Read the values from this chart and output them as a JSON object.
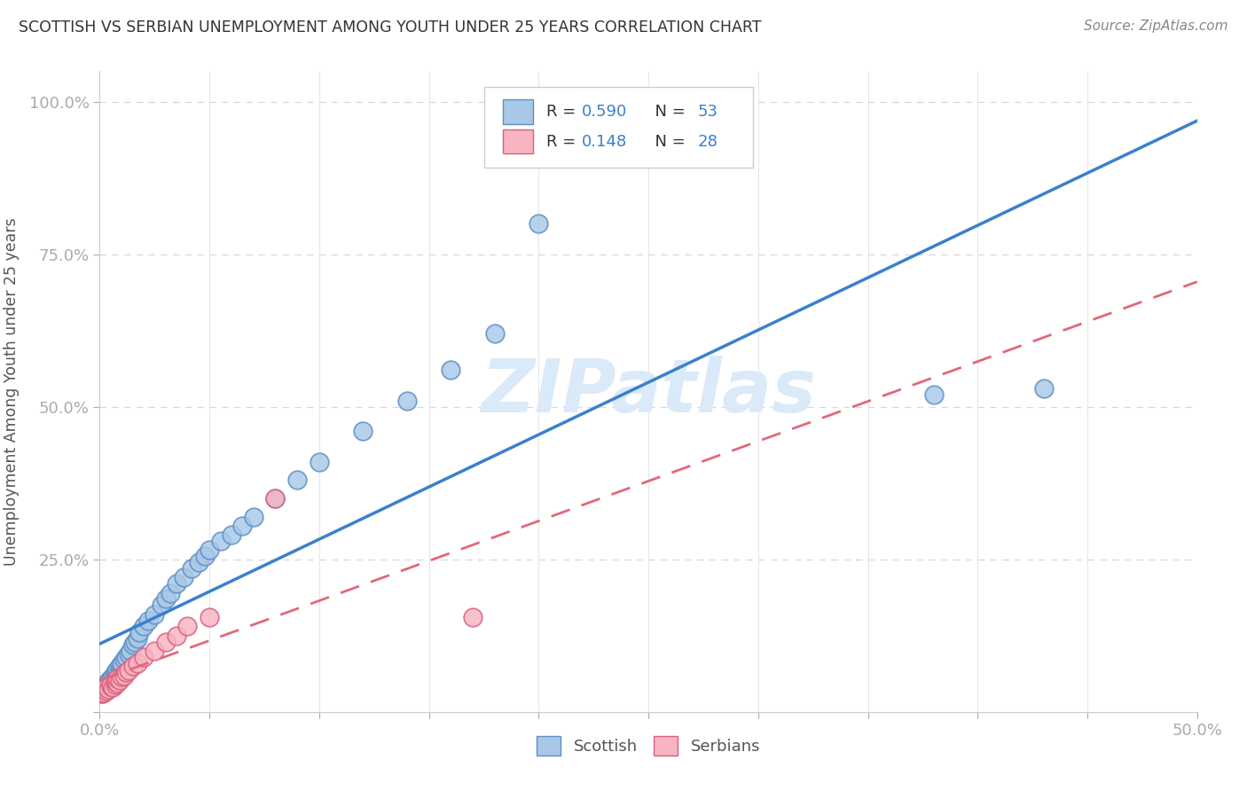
{
  "title": "SCOTTISH VS SERBIAN UNEMPLOYMENT AMONG YOUTH UNDER 25 YEARS CORRELATION CHART",
  "source": "Source: ZipAtlas.com",
  "ylabel": "Unemployment Among Youth under 25 years",
  "xlim": [
    0.0,
    0.5
  ],
  "ylim": [
    0.0,
    1.05
  ],
  "xtick_positions": [
    0.0,
    0.05,
    0.1,
    0.15,
    0.2,
    0.25,
    0.3,
    0.35,
    0.4,
    0.45,
    0.5
  ],
  "xtick_labels": [
    "0.0%",
    "",
    "",
    "",
    "",
    "",
    "",
    "",
    "",
    "",
    "50.0%"
  ],
  "ytick_positions": [
    0.0,
    0.25,
    0.5,
    0.75,
    1.0
  ],
  "ytick_labels": [
    "",
    "25.0%",
    "50.0%",
    "75.0%",
    "100.0%"
  ],
  "scot_color_face": "#a8c8e8",
  "scot_color_edge": "#5e8ec0",
  "serb_color_face": "#f8b4c0",
  "serb_color_edge": "#d86080",
  "scot_line_color": "#3a80cc",
  "serb_line_color": "#e06878",
  "watermark": "ZIPatlas",
  "watermark_color": "#daeaf8",
  "tick_color": "#3a80cc",
  "title_color": "#333333",
  "ylabel_color": "#555555",
  "source_color": "#888888",
  "grid_h_color": "#d8d8d8",
  "grid_v_color": "#e0e0e0",
  "background": "#ffffff",
  "legend_value_color": "#3a80cc",
  "scot_x": [
    0.001,
    0.002,
    0.002,
    0.003,
    0.003,
    0.004,
    0.004,
    0.005,
    0.005,
    0.006,
    0.006,
    0.007,
    0.007,
    0.008,
    0.008,
    0.009,
    0.009,
    0.01,
    0.01,
    0.011,
    0.012,
    0.013,
    0.014,
    0.015,
    0.016,
    0.017,
    0.018,
    0.02,
    0.022,
    0.025,
    0.028,
    0.03,
    0.032,
    0.035,
    0.038,
    0.042,
    0.045,
    0.048,
    0.05,
    0.055,
    0.06,
    0.065,
    0.07,
    0.08,
    0.09,
    0.1,
    0.12,
    0.14,
    0.16,
    0.18,
    0.2,
    0.38,
    0.43
  ],
  "scot_y": [
    0.03,
    0.035,
    0.04,
    0.038,
    0.045,
    0.042,
    0.05,
    0.048,
    0.055,
    0.052,
    0.058,
    0.06,
    0.065,
    0.062,
    0.07,
    0.068,
    0.075,
    0.072,
    0.08,
    0.085,
    0.09,
    0.095,
    0.1,
    0.11,
    0.115,
    0.12,
    0.13,
    0.14,
    0.15,
    0.16,
    0.175,
    0.185,
    0.195,
    0.21,
    0.22,
    0.235,
    0.245,
    0.255,
    0.265,
    0.28,
    0.29,
    0.305,
    0.32,
    0.35,
    0.38,
    0.41,
    0.46,
    0.51,
    0.56,
    0.62,
    0.8,
    0.52,
    0.53
  ],
  "serb_x": [
    0.001,
    0.002,
    0.002,
    0.003,
    0.003,
    0.004,
    0.005,
    0.005,
    0.006,
    0.007,
    0.007,
    0.008,
    0.008,
    0.009,
    0.01,
    0.011,
    0.012,
    0.013,
    0.015,
    0.017,
    0.02,
    0.025,
    0.03,
    0.035,
    0.04,
    0.05,
    0.08,
    0.17
  ],
  "serb_y": [
    0.03,
    0.032,
    0.038,
    0.035,
    0.04,
    0.038,
    0.042,
    0.045,
    0.04,
    0.045,
    0.05,
    0.048,
    0.055,
    0.052,
    0.058,
    0.06,
    0.065,
    0.068,
    0.075,
    0.08,
    0.09,
    0.1,
    0.115,
    0.125,
    0.14,
    0.155,
    0.35,
    0.155
  ]
}
